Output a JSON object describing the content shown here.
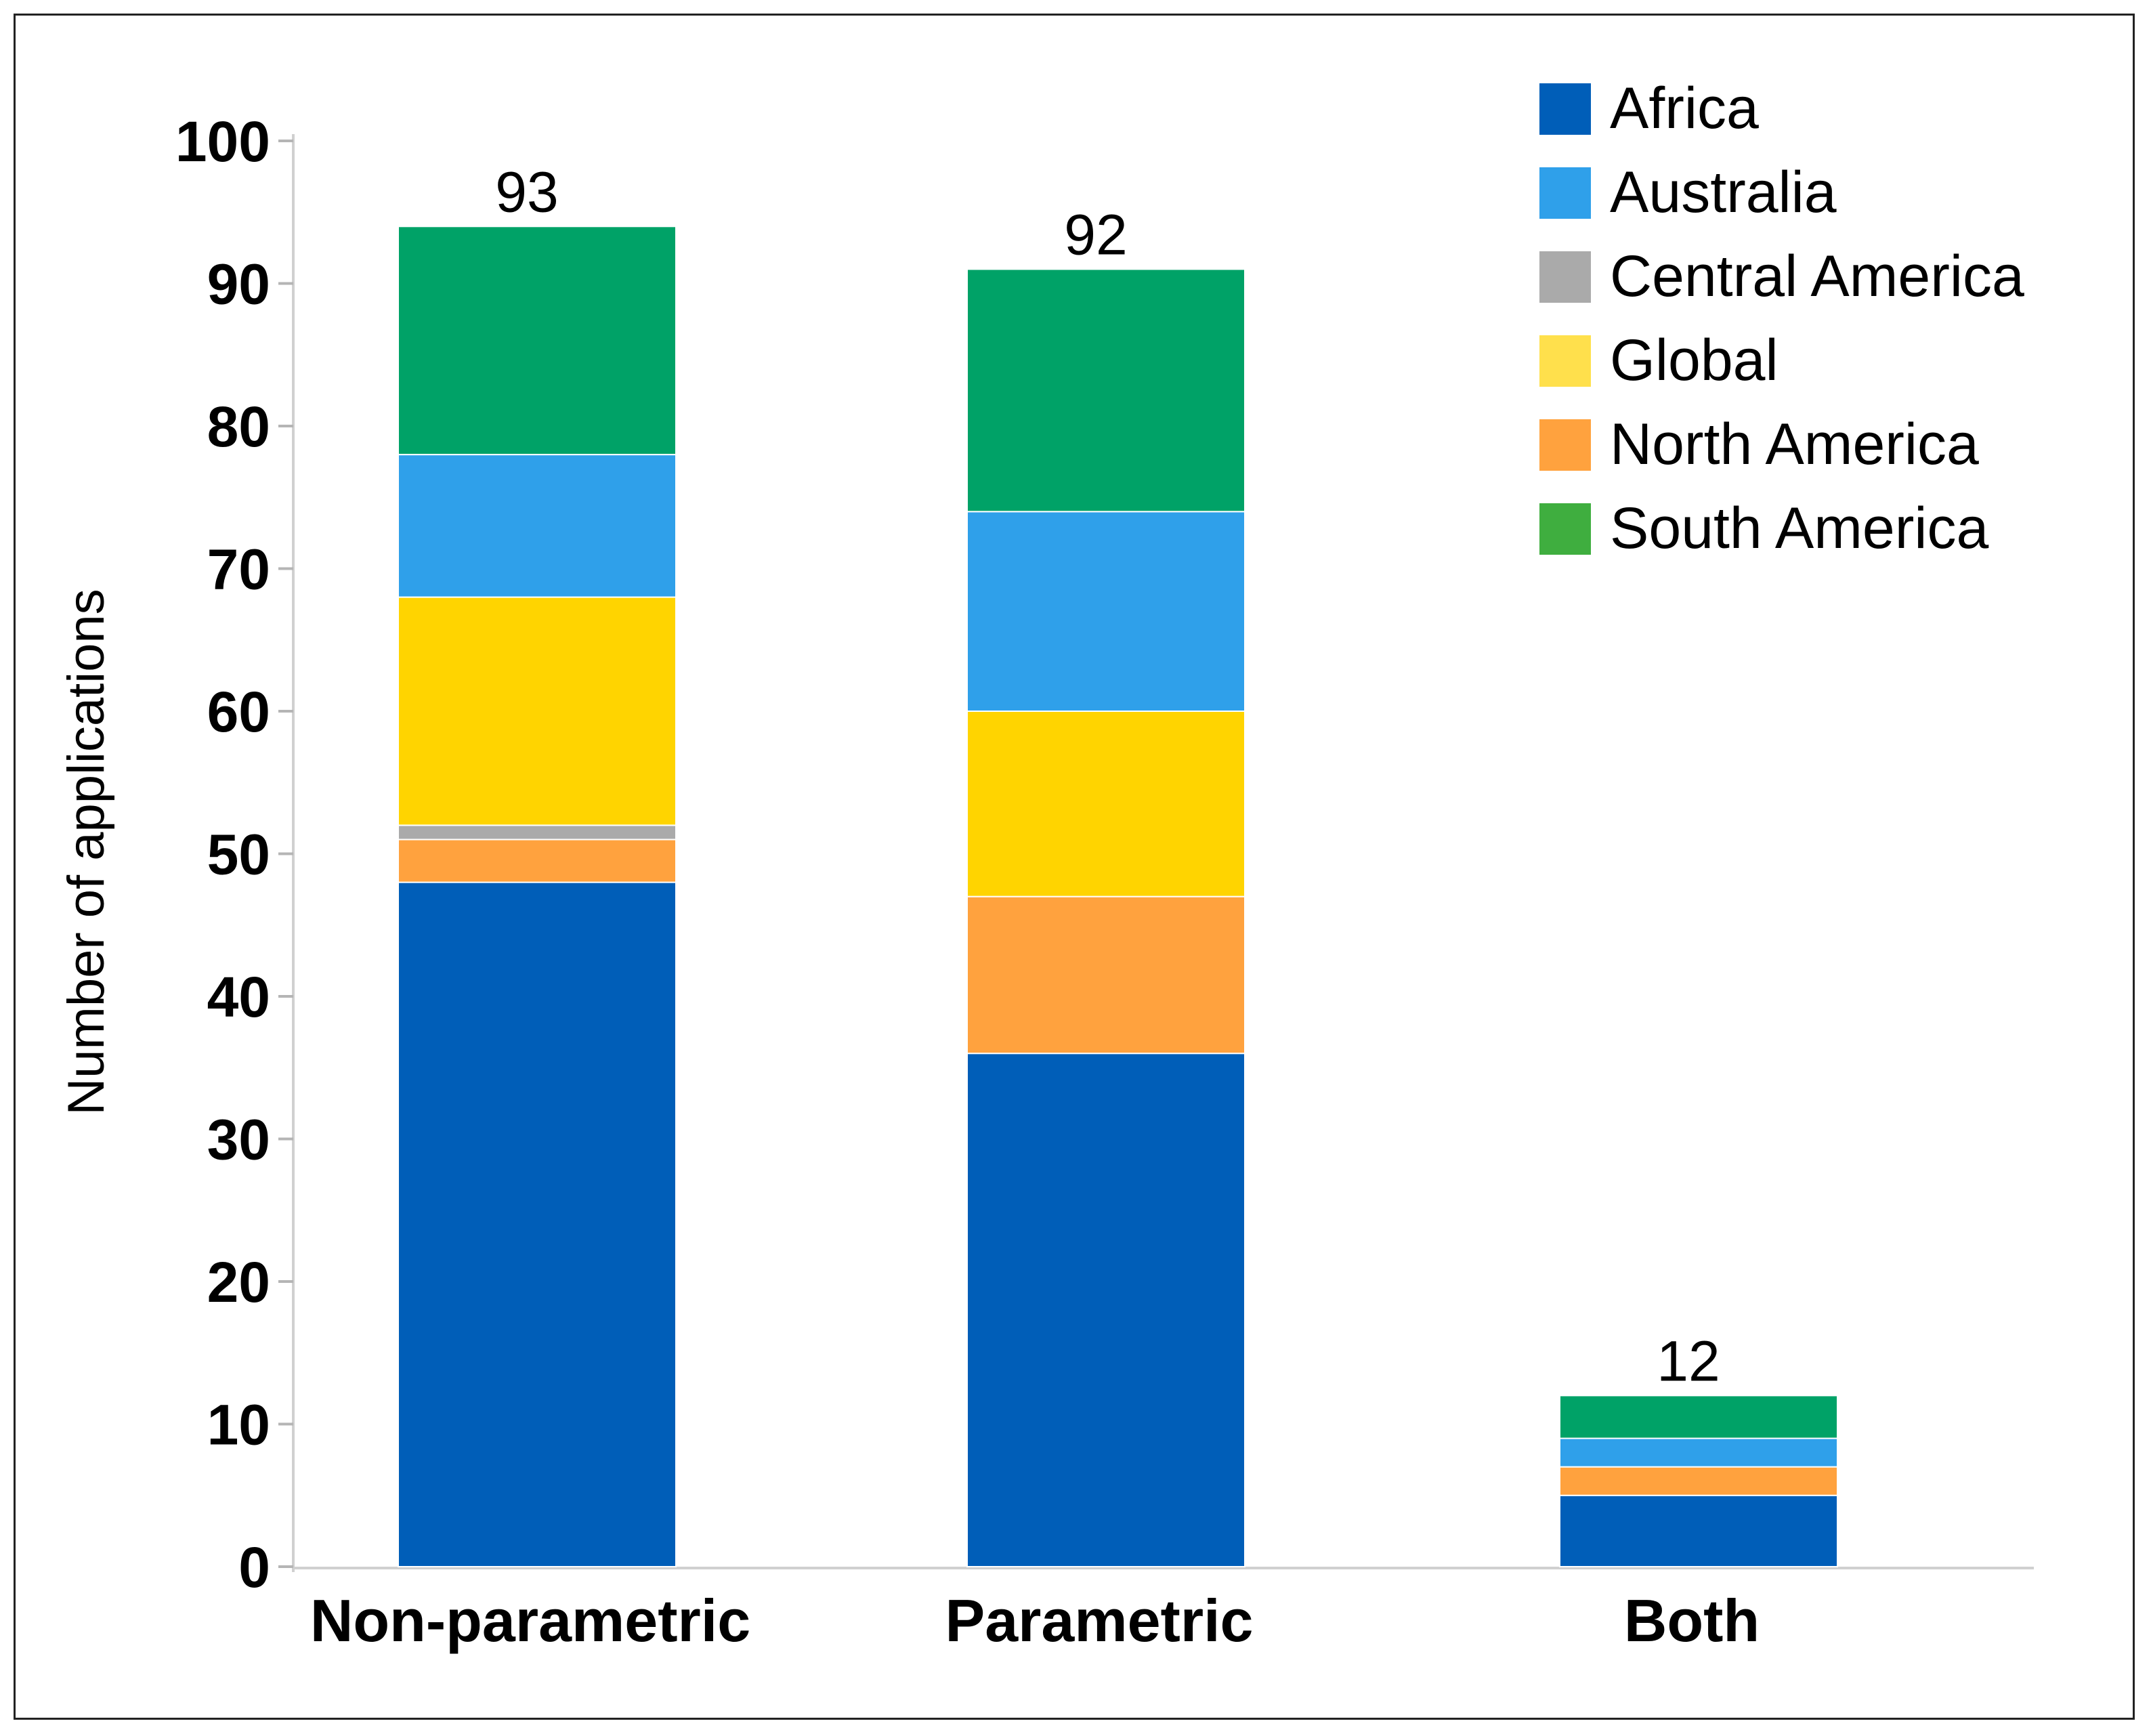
{
  "chart_data": {
    "type": "bar",
    "stacked": true,
    "title": "",
    "xlabel": "",
    "ylabel": "Number of applications",
    "ylim": [
      0,
      100
    ],
    "yticks": [
      0,
      10,
      20,
      30,
      40,
      50,
      60,
      70,
      80,
      90,
      100
    ],
    "grid": false,
    "legend_position": "top-right",
    "categories": [
      "Non-parametric",
      "Parametric",
      "Both"
    ],
    "totals": [
      93,
      92,
      12
    ],
    "series": [
      {
        "name": "Africa",
        "color": "#005EB8",
        "values": [
          48,
          36,
          5
        ]
      },
      {
        "name": "North America",
        "color": "#FFA23E",
        "values": [
          3,
          11,
          2
        ]
      },
      {
        "name": "Central America",
        "color": "#AAAAAA",
        "values": [
          1,
          0,
          0
        ]
      },
      {
        "name": "Global",
        "color": "#FFD400",
        "values": [
          16,
          13,
          0
        ]
      },
      {
        "name": "Australia",
        "color": "#2FA0EA",
        "values": [
          10,
          14,
          2
        ]
      },
      {
        "name": "South America",
        "color": "#00A267",
        "values": [
          16,
          17,
          3
        ]
      }
    ],
    "legend": [
      {
        "name": "Africa",
        "color": "#005EB8"
      },
      {
        "name": "Australia",
        "color": "#2FA0EA"
      },
      {
        "name": "Central America",
        "color": "#AAAAAA"
      },
      {
        "name": "Global",
        "color": "#FFE04C"
      },
      {
        "name": "North America",
        "color": "#FFA23E"
      },
      {
        "name": "South America",
        "color": "#3FAE3F"
      }
    ]
  }
}
